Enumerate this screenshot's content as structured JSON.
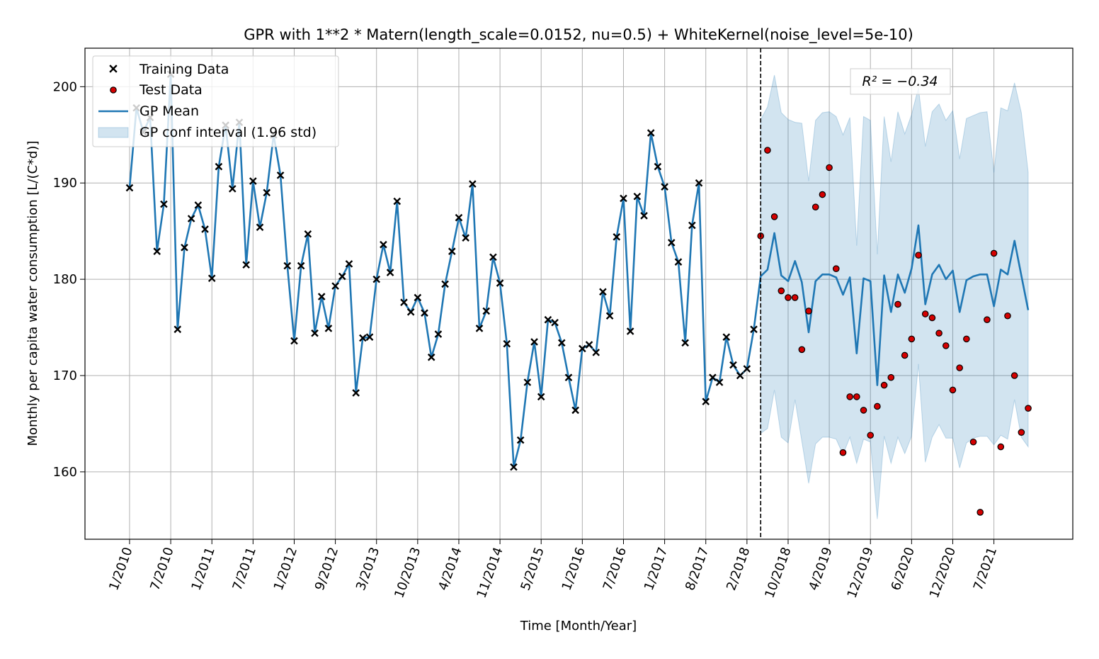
{
  "chart_data": {
    "type": "line",
    "title": "GPR with 1**2 * Matern(length_scale=0.0152, nu=0.5) + WhiteKernel(noise_level=5e-10)",
    "xlabel": "Time [Month/Year]",
    "ylabel": "Monthly per capita water consumption [L/(C*d)]",
    "ylim": [
      153,
      204
    ],
    "xlim": [
      -6.5,
      137.5
    ],
    "yticks": [
      160,
      170,
      180,
      190,
      200
    ],
    "grid": true,
    "legend_position": "top-left",
    "annotation": {
      "text": "R² = −0.34"
    },
    "split_index": 92,
    "x_ticks": [
      {
        "i": 0,
        "label": "1/2010"
      },
      {
        "i": 6,
        "label": "7/2010"
      },
      {
        "i": 12,
        "label": "1/2011"
      },
      {
        "i": 18,
        "label": "7/2011"
      },
      {
        "i": 24,
        "label": "1/2012"
      },
      {
        "i": 30,
        "label": "9/2012"
      },
      {
        "i": 36,
        "label": "3/2013"
      },
      {
        "i": 42,
        "label": "10/2013"
      },
      {
        "i": 48,
        "label": "4/2014"
      },
      {
        "i": 54,
        "label": "11/2014"
      },
      {
        "i": 60,
        "label": "5/2015"
      },
      {
        "i": 66,
        "label": "1/2016"
      },
      {
        "i": 72,
        "label": "7/2016"
      },
      {
        "i": 78,
        "label": "1/2017"
      },
      {
        "i": 84,
        "label": "8/2017"
      },
      {
        "i": 90,
        "label": "2/2018"
      },
      {
        "i": 96,
        "label": "10/2018"
      },
      {
        "i": 102,
        "label": "4/2019"
      },
      {
        "i": 108,
        "label": "12/2019"
      },
      {
        "i": 114,
        "label": "6/2020"
      },
      {
        "i": 120,
        "label": "12/2020"
      },
      {
        "i": 126,
        "label": "7/2021"
      }
    ],
    "series": [
      {
        "name": "Training Data",
        "color": "#000000",
        "marker": "x",
        "start_index": 0,
        "values": [
          189.5,
          197.8,
          195.3,
          196.8,
          182.9,
          187.8,
          201.3,
          174.8,
          183.3,
          186.3,
          187.7,
          185.2,
          180.1,
          191.7,
          196.0,
          189.4,
          196.3,
          181.5,
          190.2,
          185.4,
          189.0,
          195.0,
          190.8,
          181.4,
          173.6,
          181.4,
          184.7,
          174.4,
          178.2,
          174.9,
          179.3,
          180.3,
          181.6,
          168.2,
          173.9,
          174.0,
          180.0,
          183.6,
          180.7,
          188.1,
          177.6,
          176.6,
          178.1,
          176.5,
          171.9,
          174.3,
          179.5,
          182.9,
          186.4,
          184.3,
          189.9,
          174.9,
          176.7,
          182.3,
          179.6,
          173.3,
          160.5,
          163.3,
          169.3,
          173.5,
          167.8,
          175.8,
          175.5,
          173.4,
          169.8,
          166.4,
          172.8,
          173.2,
          172.4,
          178.7,
          176.2,
          184.4,
          188.4,
          174.6,
          188.6,
          186.6,
          195.2,
          191.7,
          189.6,
          183.8,
          181.8,
          173.4,
          185.6,
          190.0,
          167.3,
          169.8,
          169.3,
          174.0,
          171.1,
          170.0,
          170.7,
          174.8
        ]
      },
      {
        "name": "Test Data",
        "color": "#d40000",
        "marker": "o",
        "start_index": 92,
        "values": [
          184.5,
          193.4,
          186.5,
          178.8,
          178.1,
          178.1,
          172.7,
          176.7,
          187.5,
          188.8,
          191.6,
          181.1,
          162.0,
          167.8,
          167.8,
          166.4,
          163.8,
          166.8,
          169.0,
          169.8,
          177.4,
          172.1,
          173.8,
          182.5,
          176.4,
          176.0,
          174.4,
          173.1,
          168.5,
          170.8,
          173.8,
          163.1,
          155.8,
          175.8,
          182.7,
          162.6,
          176.2,
          170.0,
          164.1,
          166.6
        ]
      },
      {
        "name": "GP Mean",
        "color": "#1f77b4",
        "start_index": 0,
        "values": [
          189.5,
          197.8,
          195.3,
          196.8,
          182.9,
          187.8,
          201.3,
          174.8,
          183.3,
          186.3,
          187.7,
          185.2,
          180.1,
          191.7,
          196.0,
          189.4,
          196.3,
          181.5,
          190.2,
          185.4,
          189.0,
          195.0,
          190.8,
          181.4,
          173.6,
          181.4,
          184.7,
          174.4,
          178.2,
          174.9,
          179.3,
          180.3,
          181.6,
          168.2,
          173.9,
          174.0,
          180.0,
          183.6,
          180.7,
          188.1,
          177.6,
          176.6,
          178.1,
          176.5,
          171.9,
          174.3,
          179.5,
          182.9,
          186.4,
          184.3,
          189.9,
          174.9,
          176.7,
          182.3,
          179.6,
          173.3,
          160.5,
          163.3,
          169.3,
          173.5,
          167.8,
          175.8,
          175.5,
          173.4,
          169.8,
          166.4,
          172.8,
          173.2,
          172.4,
          178.7,
          176.2,
          184.4,
          188.4,
          174.6,
          188.6,
          186.6,
          195.2,
          191.7,
          189.6,
          183.8,
          181.8,
          173.4,
          185.6,
          190.0,
          167.3,
          169.8,
          169.3,
          174.0,
          171.1,
          170.0,
          170.7,
          174.8,
          180.3,
          181.0,
          184.8,
          180.4,
          179.8,
          181.9,
          179.7,
          174.5,
          179.8,
          180.5,
          180.5,
          180.2,
          178.4,
          180.2,
          172.3,
          180.1,
          179.8,
          169.0,
          180.4,
          176.6,
          180.5,
          178.6,
          181.1,
          185.6,
          177.4,
          180.5,
          181.5,
          180.0,
          180.9,
          176.6,
          179.9,
          180.3,
          180.5,
          180.5,
          177.2,
          181.0,
          180.5,
          184.0,
          180.4,
          176.8
        ]
      },
      {
        "name": "GP conf interval (1.96 std)",
        "color": "#1f77b4",
        "fill_opacity": 0.2,
        "start_index": 92,
        "upper": [
          196.6,
          197.9,
          201.2,
          197.3,
          196.6,
          196.3,
          196.2,
          190.2,
          196.5,
          197.3,
          197.4,
          196.9,
          195.0,
          196.8,
          183.5,
          196.9,
          196.5,
          182.6,
          196.9,
          192.2,
          197.4,
          195.1,
          197.1,
          199.9,
          193.8,
          197.4,
          198.2,
          196.5,
          197.5,
          192.5,
          196.7,
          197.0,
          197.3,
          197.4,
          191.1,
          197.8,
          197.5,
          200.4,
          197.3,
          191.1
        ],
        "lower": [
          164.0,
          164.5,
          168.5,
          163.6,
          163.0,
          167.5,
          163.2,
          158.8,
          162.9,
          163.6,
          163.6,
          163.4,
          161.8,
          163.6,
          160.9,
          163.4,
          163.1,
          155.1,
          163.7,
          160.9,
          163.6,
          161.9,
          163.7,
          171.2,
          161.0,
          163.6,
          164.9,
          163.5,
          163.5,
          160.4,
          163.0,
          163.5,
          163.7,
          163.7,
          162.8,
          163.8,
          163.4,
          167.5,
          163.6,
          162.6
        ]
      }
    ]
  }
}
